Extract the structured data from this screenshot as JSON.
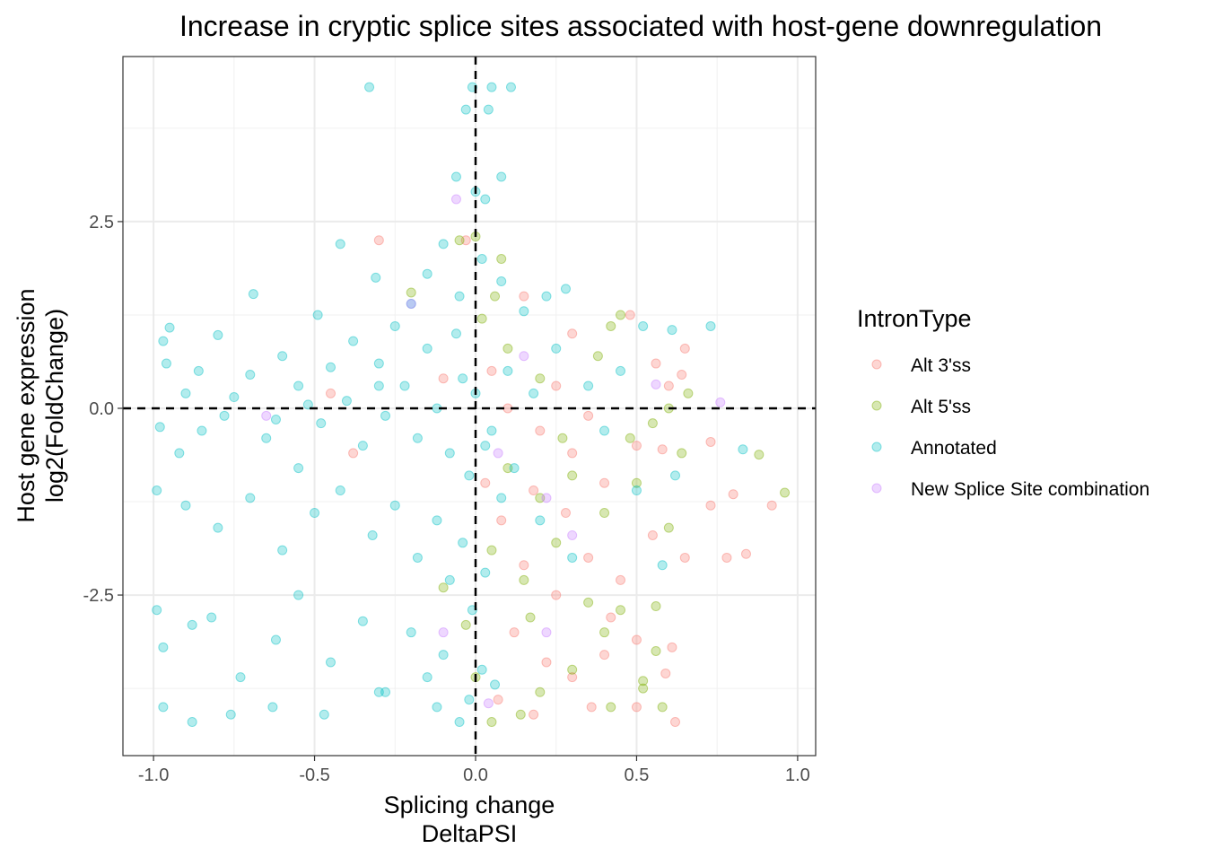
{
  "chart_data": {
    "type": "scatter",
    "title": "Increase in cryptic splice sites associated with host-gene downregulation",
    "xlabel": [
      "Splicing change",
      "DeltaPSI"
    ],
    "ylabel": [
      "Host gene expression",
      "log2(FoldChange)"
    ],
    "xlim": [
      -1.095,
      1.056
    ],
    "ylim": [
      -4.65,
      4.71
    ],
    "x_ticks": [
      -1.0,
      -0.5,
      0.0,
      0.5,
      1.0
    ],
    "x_tick_labels": [
      "-1.0",
      "-0.5",
      "0.0",
      "0.5",
      "1.0"
    ],
    "y_ticks": [
      -2.5,
      0.0,
      2.5
    ],
    "y_tick_labels": [
      "-2.5",
      "0.0",
      "2.5"
    ],
    "grid": true,
    "reference_lines": {
      "x": 0,
      "y": 0,
      "style": "dashed"
    },
    "legend": {
      "title": "IntronType",
      "placement": "right"
    },
    "point_alpha": 0.3,
    "series": [
      {
        "name": "Alt 3'ss",
        "color": "#F8766D",
        "points": [
          [
            -0.03,
            2.25
          ],
          [
            -0.3,
            2.25
          ],
          [
            0.15,
            1.5
          ],
          [
            0.3,
            1.0
          ],
          [
            0.48,
            1.25
          ],
          [
            0.56,
            0.6
          ],
          [
            0.65,
            0.8
          ],
          [
            0.64,
            0.45
          ],
          [
            0.6,
            0.3
          ],
          [
            0.05,
            0.5
          ],
          [
            0.1,
            0.0
          ],
          [
            0.2,
            -0.3
          ],
          [
            0.3,
            -0.6
          ],
          [
            0.4,
            -1.0
          ],
          [
            0.5,
            -0.5
          ],
          [
            0.58,
            -0.55
          ],
          [
            0.73,
            -0.45
          ],
          [
            0.73,
            -1.3
          ],
          [
            0.8,
            -1.15
          ],
          [
            0.92,
            -1.3
          ],
          [
            0.84,
            -1.95
          ],
          [
            0.78,
            -2.0
          ],
          [
            0.65,
            -2.0
          ],
          [
            0.55,
            -1.7
          ],
          [
            0.45,
            -2.3
          ],
          [
            0.35,
            -2.0
          ],
          [
            0.25,
            -2.5
          ],
          [
            0.15,
            -2.1
          ],
          [
            0.08,
            -1.5
          ],
          [
            0.03,
            -1.0
          ],
          [
            0.12,
            -3.0
          ],
          [
            0.22,
            -3.4
          ],
          [
            0.3,
            -3.6
          ],
          [
            0.4,
            -3.3
          ],
          [
            0.5,
            -3.1
          ],
          [
            0.61,
            -3.2
          ],
          [
            0.59,
            -3.55
          ],
          [
            0.62,
            -4.2
          ],
          [
            0.5,
            -4.0
          ],
          [
            0.36,
            -4.0
          ],
          [
            0.18,
            -4.1
          ],
          [
            0.07,
            -3.9
          ],
          [
            0.35,
            -0.1
          ],
          [
            0.25,
            0.3
          ],
          [
            -0.1,
            0.4
          ],
          [
            -0.45,
            0.2
          ],
          [
            -0.38,
            -0.6
          ],
          [
            0.42,
            -2.8
          ],
          [
            0.18,
            -1.1
          ],
          [
            0.28,
            -1.4
          ]
        ]
      },
      {
        "name": "Alt 5'ss",
        "color": "#7CAE00",
        "points": [
          [
            0.0,
            2.3
          ],
          [
            -0.05,
            2.25
          ],
          [
            0.06,
            1.5
          ],
          [
            -0.2,
            1.55
          ],
          [
            0.45,
            1.25
          ],
          [
            0.42,
            1.1
          ],
          [
            0.66,
            0.2
          ],
          [
            0.6,
            0.0
          ],
          [
            0.55,
            -0.2
          ],
          [
            0.48,
            -0.4
          ],
          [
            0.88,
            -0.62
          ],
          [
            0.96,
            -1.13
          ],
          [
            0.64,
            -0.6
          ],
          [
            0.6,
            -1.6
          ],
          [
            0.5,
            -1.0
          ],
          [
            0.4,
            -1.4
          ],
          [
            0.3,
            -0.9
          ],
          [
            0.2,
            -1.2
          ],
          [
            0.1,
            -0.8
          ],
          [
            0.05,
            -1.9
          ],
          [
            0.15,
            -2.3
          ],
          [
            0.25,
            -1.8
          ],
          [
            0.35,
            -2.6
          ],
          [
            0.45,
            -2.7
          ],
          [
            0.56,
            -2.65
          ],
          [
            0.56,
            -3.25
          ],
          [
            0.52,
            -3.75
          ],
          [
            0.52,
            -3.65
          ],
          [
            0.4,
            -3.0
          ],
          [
            0.3,
            -3.5
          ],
          [
            0.2,
            -3.8
          ],
          [
            0.14,
            -4.1
          ],
          [
            0.05,
            -4.2
          ],
          [
            0.0,
            -3.6
          ],
          [
            -0.03,
            -2.9
          ],
          [
            -0.1,
            -2.4
          ],
          [
            0.1,
            0.8
          ],
          [
            0.2,
            0.4
          ],
          [
            0.38,
            0.7
          ],
          [
            0.27,
            -0.4
          ],
          [
            0.17,
            -2.8
          ],
          [
            0.58,
            -4.0
          ],
          [
            0.42,
            -4.0
          ],
          [
            0.02,
            1.2
          ],
          [
            0.08,
            2.0
          ]
        ]
      },
      {
        "name": "Annotated",
        "color": "#00BFC4",
        "points": [
          [
            -0.33,
            4.3
          ],
          [
            -0.01,
            4.3
          ],
          [
            0.05,
            4.3
          ],
          [
            0.11,
            4.3
          ],
          [
            -0.03,
            4.0
          ],
          [
            0.04,
            4.0
          ],
          [
            -0.06,
            3.1
          ],
          [
            0.08,
            3.1
          ],
          [
            0.0,
            2.9
          ],
          [
            0.03,
            2.8
          ],
          [
            -0.42,
            2.2
          ],
          [
            -0.31,
            1.75
          ],
          [
            -0.49,
            1.25
          ],
          [
            -0.69,
            1.53
          ],
          [
            -0.95,
            1.08
          ],
          [
            -0.97,
            0.9
          ],
          [
            -0.8,
            0.98
          ],
          [
            -0.7,
            0.45
          ],
          [
            -0.6,
            0.7
          ],
          [
            -0.55,
            0.3
          ],
          [
            -0.45,
            0.55
          ],
          [
            -0.38,
            0.9
          ],
          [
            -0.3,
            0.6
          ],
          [
            -0.25,
            1.1
          ],
          [
            -0.2,
            1.4
          ],
          [
            -0.15,
            1.8
          ],
          [
            -0.1,
            2.2
          ],
          [
            -0.05,
            1.5
          ],
          [
            0.02,
            2.0
          ],
          [
            0.08,
            1.7
          ],
          [
            0.15,
            1.3
          ],
          [
            0.22,
            1.5
          ],
          [
            0.28,
            1.6
          ],
          [
            0.73,
            1.1
          ],
          [
            0.61,
            1.05
          ],
          [
            0.52,
            1.1
          ],
          [
            -0.9,
            0.2
          ],
          [
            -0.85,
            -0.3
          ],
          [
            -0.98,
            -0.25
          ],
          [
            -0.92,
            -0.6
          ],
          [
            -0.78,
            -0.1
          ],
          [
            -0.65,
            -0.4
          ],
          [
            -0.55,
            -0.8
          ],
          [
            -0.48,
            -0.2
          ],
          [
            -0.4,
            0.1
          ],
          [
            -0.35,
            -0.5
          ],
          [
            -0.28,
            -0.1
          ],
          [
            -0.22,
            0.3
          ],
          [
            -0.18,
            -0.4
          ],
          [
            -0.12,
            0.0
          ],
          [
            -0.08,
            -0.6
          ],
          [
            -0.04,
            0.4
          ],
          [
            -0.02,
            -0.9
          ],
          [
            0.05,
            -0.3
          ],
          [
            0.1,
            0.5
          ],
          [
            0.18,
            0.2
          ],
          [
            0.25,
            0.8
          ],
          [
            0.35,
            0.3
          ],
          [
            0.45,
            0.5
          ],
          [
            0.83,
            -0.55
          ],
          [
            0.62,
            -0.9
          ],
          [
            -0.99,
            -1.1
          ],
          [
            -0.9,
            -1.3
          ],
          [
            -0.8,
            -1.6
          ],
          [
            -0.7,
            -1.2
          ],
          [
            -0.6,
            -1.9
          ],
          [
            -0.5,
            -1.4
          ],
          [
            -0.42,
            -1.1
          ],
          [
            -0.32,
            -1.7
          ],
          [
            -0.25,
            -1.3
          ],
          [
            -0.18,
            -2.0
          ],
          [
            -0.12,
            -1.5
          ],
          [
            -0.08,
            -2.3
          ],
          [
            -0.04,
            -1.8
          ],
          [
            -0.01,
            -2.7
          ],
          [
            0.03,
            -2.2
          ],
          [
            0.08,
            -1.2
          ],
          [
            -0.99,
            -2.7
          ],
          [
            -0.97,
            -3.2
          ],
          [
            -0.88,
            -2.9
          ],
          [
            -0.82,
            -2.8
          ],
          [
            -0.73,
            -3.6
          ],
          [
            -0.62,
            -3.1
          ],
          [
            -0.55,
            -2.5
          ],
          [
            -0.45,
            -3.4
          ],
          [
            -0.35,
            -2.85
          ],
          [
            -0.28,
            -3.8
          ],
          [
            -0.2,
            -3.0
          ],
          [
            -0.15,
            -3.6
          ],
          [
            -0.1,
            -3.3
          ],
          [
            -0.05,
            -4.2
          ],
          [
            -0.02,
            -3.9
          ],
          [
            0.02,
            -3.5
          ],
          [
            -0.97,
            -4.0
          ],
          [
            -0.88,
            -4.2
          ],
          [
            -0.76,
            -4.1
          ],
          [
            -0.63,
            -4.0
          ],
          [
            -0.47,
            -4.1
          ],
          [
            -0.3,
            -3.8
          ],
          [
            -0.12,
            -4.0
          ],
          [
            0.06,
            -3.7
          ],
          [
            -0.96,
            0.6
          ],
          [
            -0.86,
            0.5
          ],
          [
            -0.75,
            0.15
          ],
          [
            -0.62,
            -0.15
          ],
          [
            -0.52,
            0.05
          ],
          [
            -0.3,
            0.3
          ],
          [
            -0.15,
            0.8
          ],
          [
            -0.06,
            1.0
          ],
          [
            0.0,
            0.2
          ],
          [
            0.03,
            -0.5
          ],
          [
            0.12,
            -0.8
          ],
          [
            0.2,
            -1.5
          ],
          [
            0.3,
            -2.0
          ],
          [
            0.4,
            -0.3
          ],
          [
            0.5,
            -1.1
          ],
          [
            0.58,
            -2.1
          ]
        ]
      },
      {
        "name": "New Splice Site combination",
        "color": "#C77CFF",
        "points": [
          [
            -0.06,
            2.8
          ],
          [
            0.76,
            0.08
          ],
          [
            0.56,
            0.32
          ],
          [
            -0.2,
            1.4
          ],
          [
            0.22,
            -1.2
          ],
          [
            0.07,
            -0.6
          ],
          [
            0.3,
            -1.7
          ],
          [
            0.22,
            -3.0
          ],
          [
            0.04,
            -3.95
          ],
          [
            -0.1,
            -3.0
          ],
          [
            -0.65,
            -0.1
          ],
          [
            0.15,
            0.7
          ]
        ]
      }
    ]
  }
}
